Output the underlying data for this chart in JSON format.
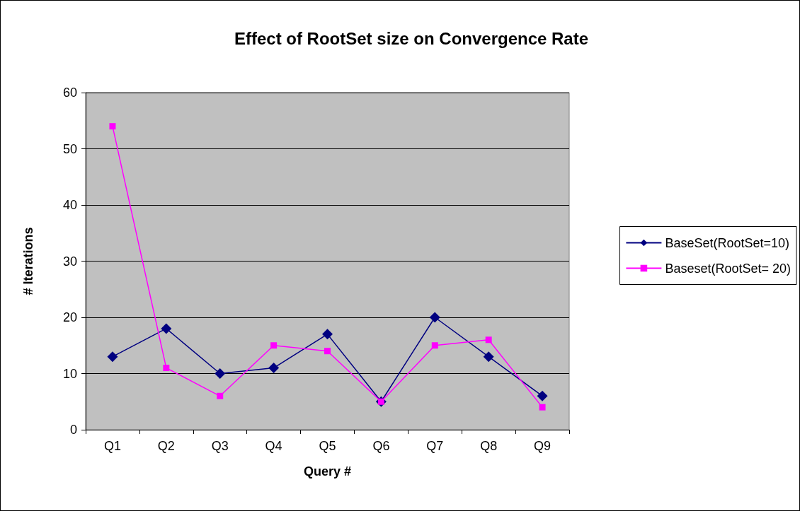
{
  "chart_data": {
    "type": "line",
    "title": "Effect of RootSet size on Convergence Rate",
    "xlabel": "Query #",
    "ylabel": "# Iterations",
    "categories": [
      "Q1",
      "Q2",
      "Q3",
      "Q4",
      "Q5",
      "Q6",
      "Q7",
      "Q8",
      "Q9"
    ],
    "series": [
      {
        "name": "BaseSet(RootSet=10)",
        "color": "#000080",
        "marker": "diamond",
        "values": [
          13,
          18,
          10,
          11,
          17,
          5,
          20,
          13,
          6
        ]
      },
      {
        "name": "Baseset(RootSet= 20)",
        "color": "#ff00ff",
        "marker": "square",
        "values": [
          54,
          11,
          6,
          15,
          14,
          5,
          15,
          16,
          4
        ]
      }
    ],
    "ylim": [
      0,
      60
    ],
    "yticks": [
      0,
      10,
      20,
      30,
      40,
      50,
      60
    ],
    "grid": "y",
    "legend": "right",
    "line_style": "solid"
  }
}
